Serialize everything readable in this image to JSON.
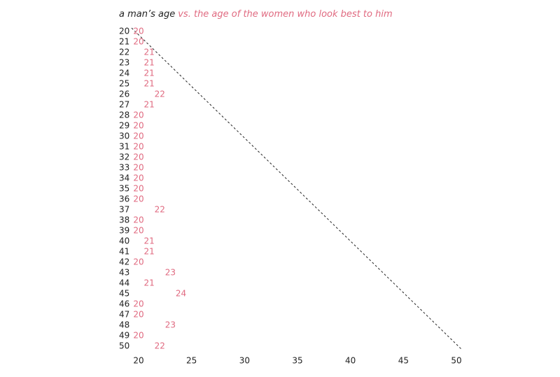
{
  "chart_data": {
    "type": "label-scatter",
    "title": [
      "a man’s age",
      "vs. the age of the women who look best to him"
    ],
    "title_colors": [
      "#222222",
      "#e06a80"
    ],
    "categories": [
      20,
      21,
      22,
      23,
      24,
      25,
      26,
      27,
      28,
      29,
      30,
      31,
      32,
      33,
      34,
      35,
      36,
      37,
      38,
      39,
      40,
      41,
      42,
      43,
      44,
      45,
      46,
      47,
      48,
      49,
      50
    ],
    "values": [
      20,
      20,
      21,
      21,
      21,
      21,
      22,
      21,
      20,
      20,
      20,
      20,
      20,
      20,
      20,
      20,
      20,
      22,
      20,
      20,
      21,
      21,
      20,
      23,
      21,
      24,
      20,
      20,
      23,
      20,
      22
    ],
    "color": "#e06a80",
    "xlim": [
      20,
      50
    ],
    "xticks": [
      20,
      25,
      30,
      35,
      40,
      45,
      50
    ],
    "reference_line": true
  }
}
